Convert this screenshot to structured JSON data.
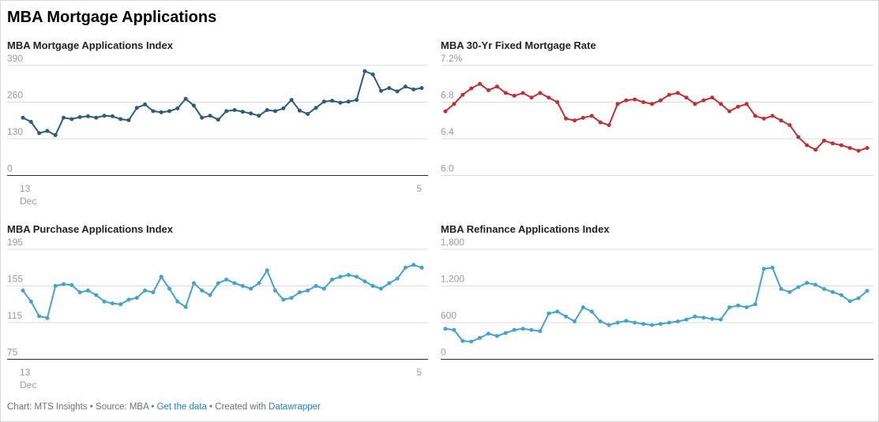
{
  "page": {
    "title": "MBA Mortgage Applications"
  },
  "colors": {
    "navy_line": "#2d5b7c",
    "red_line": "#bf3036",
    "light_blue_line": "#45a2cd",
    "gridline": "#dddddd",
    "axis_baseline": "#2b2b2b",
    "tick_label": "#9b9b9b",
    "link": "#2d7fc1"
  },
  "footer": {
    "text1": "Chart: MTS Insights • Source: MBA • ",
    "link1": "Get the data",
    "text2": " • Created with ",
    "link2": "Datawrapper"
  },
  "chart_data": [
    {
      "type": "line",
      "title": "MBA Mortgage Applications Index",
      "color": "#2d5b7c",
      "ylim": [
        0,
        390
      ],
      "yticks": [
        {
          "label": "390",
          "value": 390
        },
        {
          "label": "260",
          "value": 260
        },
        {
          "label": "130",
          "value": 130
        },
        {
          "label": "0",
          "value": 0,
          "dark": true
        }
      ],
      "x_axis": {
        "start_day": "13",
        "start_month": "Dec",
        "end_label": "5"
      },
      "values": [
        205,
        190,
        150,
        158,
        143,
        205,
        200,
        207,
        210,
        205,
        212,
        210,
        200,
        196,
        240,
        252,
        228,
        224,
        228,
        238,
        272,
        248,
        205,
        212,
        198,
        228,
        232,
        226,
        220,
        212,
        232,
        228,
        238,
        268,
        230,
        218,
        240,
        262,
        265,
        258,
        262,
        268,
        370,
        358,
        300,
        310,
        298,
        315,
        305,
        310
      ]
    },
    {
      "type": "line",
      "title": "MBA 30-Yr Fixed Mortgage Rate",
      "color": "#bf3036",
      "ylim": [
        6.0,
        7.2
      ],
      "yticks": [
        {
          "label": "7.2%",
          "value": 7.2
        },
        {
          "label": "6.8",
          "value": 6.8
        },
        {
          "label": "6.4",
          "value": 6.4
        },
        {
          "label": "6.0",
          "value": 6.0
        }
      ],
      "x_axis": null,
      "values": [
        6.7,
        6.78,
        6.88,
        6.95,
        7.0,
        6.93,
        6.97,
        6.9,
        6.87,
        6.9,
        6.85,
        6.9,
        6.85,
        6.8,
        6.62,
        6.6,
        6.63,
        6.65,
        6.58,
        6.55,
        6.78,
        6.82,
        6.83,
        6.8,
        6.78,
        6.82,
        6.88,
        6.9,
        6.85,
        6.78,
        6.82,
        6.85,
        6.78,
        6.7,
        6.75,
        6.78,
        6.65,
        6.62,
        6.65,
        6.6,
        6.55,
        6.42,
        6.33,
        6.28,
        6.38,
        6.35,
        6.33,
        6.3,
        6.27,
        6.3
      ]
    },
    {
      "type": "line",
      "title": "MBA Purchase Applications Index",
      "color": "#45a2cd",
      "ylim": [
        75,
        195
      ],
      "yticks": [
        {
          "label": "195",
          "value": 195
        },
        {
          "label": "155",
          "value": 155
        },
        {
          "label": "115",
          "value": 115
        },
        {
          "label": "75",
          "value": 75,
          "dark": true
        }
      ],
      "x_axis": {
        "start_day": "13",
        "start_month": "Dec",
        "end_label": "5"
      },
      "values": [
        150,
        138,
        122,
        120,
        155,
        157,
        156,
        148,
        150,
        145,
        138,
        136,
        135,
        140,
        142,
        150,
        148,
        165,
        152,
        138,
        132,
        158,
        150,
        145,
        158,
        162,
        158,
        155,
        152,
        158,
        172,
        150,
        140,
        142,
        148,
        150,
        155,
        152,
        162,
        165,
        167,
        165,
        160,
        155,
        152,
        158,
        163,
        175,
        178,
        175
      ]
    },
    {
      "type": "line",
      "title": "MBA Refinance Applications Index",
      "color": "#45a2cd",
      "ylim": [
        0,
        1800
      ],
      "yticks": [
        {
          "label": "1,800",
          "value": 1800
        },
        {
          "label": "1,200",
          "value": 1200
        },
        {
          "label": "600",
          "value": 600
        },
        {
          "label": "0",
          "value": 0,
          "dark": true
        }
      ],
      "x_axis": null,
      "values": [
        500,
        480,
        300,
        290,
        350,
        420,
        380,
        430,
        480,
        500,
        480,
        460,
        750,
        780,
        700,
        620,
        850,
        780,
        620,
        560,
        600,
        630,
        600,
        580,
        560,
        580,
        600,
        620,
        650,
        700,
        680,
        660,
        650,
        850,
        880,
        850,
        900,
        1480,
        1500,
        1150,
        1100,
        1180,
        1250,
        1220,
        1150,
        1100,
        1050,
        950,
        1000,
        1120
      ]
    }
  ]
}
